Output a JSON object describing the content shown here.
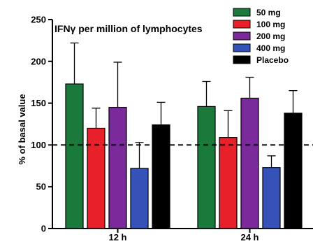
{
  "chart_data": {
    "type": "bar",
    "title": "IFNγ per million of lymphocytes",
    "ylabel": "% of basal value",
    "xlabel": "",
    "categories": [
      "12 h",
      "24 h"
    ],
    "ylim": [
      0,
      250
    ],
    "yticks": [
      "0",
      "50",
      "100",
      "150",
      "200",
      "250"
    ],
    "reference_line": {
      "y": 100,
      "style": "dashed"
    },
    "legend_position": "top-right",
    "series": [
      {
        "name": "50 mg",
        "color": "#1a7a3c",
        "values": [
          173,
          146
        ],
        "errors": [
          49,
          30
        ]
      },
      {
        "name": "100 mg",
        "color": "#e8202a",
        "values": [
          120,
          109
        ],
        "errors": [
          24,
          32
        ]
      },
      {
        "name": "200 mg",
        "color": "#7a2a9a",
        "values": [
          145,
          156
        ],
        "errors": [
          54,
          25
        ]
      },
      {
        "name": "400 mg",
        "color": "#3452b8",
        "values": [
          72,
          73
        ],
        "errors": [
          31,
          14
        ]
      },
      {
        "name": "Placebo",
        "color": "#000000",
        "values": [
          124,
          138
        ],
        "errors": [
          27,
          27
        ]
      }
    ]
  }
}
